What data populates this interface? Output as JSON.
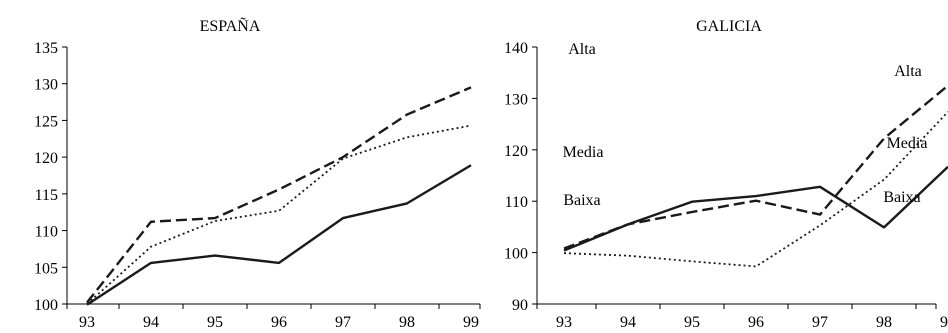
{
  "chart_data": [
    {
      "type": "line",
      "title": "ESPAÑA",
      "x": [
        "93",
        "94",
        "95",
        "96",
        "97",
        "98",
        "99"
      ],
      "ylim": [
        100,
        135
      ],
      "yticks": [
        100,
        105,
        110,
        115,
        120,
        125,
        130,
        135
      ],
      "grid": false,
      "series": [
        {
          "name": "Alta",
          "style": "dashed",
          "values": [
            100.2,
            111.2,
            111.7,
            115.6,
            120.0,
            125.8,
            129.5
          ]
        },
        {
          "name": "Media",
          "style": "dotted",
          "values": [
            100.0,
            107.8,
            111.3,
            112.7,
            119.8,
            122.7,
            124.3
          ]
        },
        {
          "name": "Baixa",
          "style": "solid",
          "values": [
            99.9,
            105.6,
            106.6,
            105.6,
            111.7,
            113.7,
            118.9
          ]
        }
      ]
    },
    {
      "type": "line",
      "title": "GALICIA",
      "x": [
        "93",
        "94",
        "95",
        "96",
        "97",
        "98",
        "99"
      ],
      "ylim": [
        90,
        140
      ],
      "yticks": [
        90,
        100,
        110,
        120,
        130,
        140
      ],
      "grid": false,
      "series": [
        {
          "name": "Alta",
          "style": "dashed",
          "values": [
            100.8,
            105.5,
            107.9,
            110.1,
            107.4,
            122.2,
            132.5
          ]
        },
        {
          "name": "Media",
          "style": "dotted",
          "values": [
            99.9,
            99.4,
            98.3,
            97.3,
            105.3,
            114.2,
            127.4
          ]
        },
        {
          "name": "Baixa",
          "style": "solid",
          "values": [
            100.4,
            105.5,
            109.9,
            111.0,
            112.8,
            104.9,
            116.7
          ]
        }
      ]
    }
  ],
  "colors": {
    "line": "#1a1a1a",
    "axis": "#000000"
  }
}
